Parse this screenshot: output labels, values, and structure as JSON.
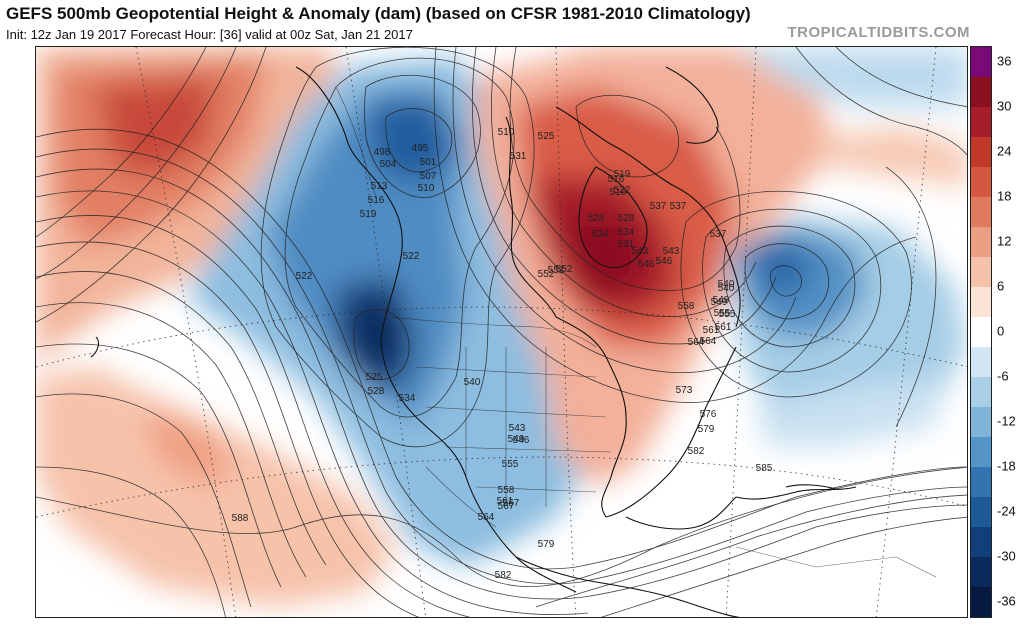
{
  "header": {
    "title": "GEFS 500mb Geopotential Height & Anomaly (dam) (based on CFSR 1981-2010 Climatology)",
    "subtitle": "Init: 12z Jan 19 2017   Forecast Hour: [36]   valid at 00z Sat, Jan 21 2017",
    "brand": "TROPICALTIDBITS.COM"
  },
  "colorbar": {
    "labels": [
      "36",
      "30",
      "24",
      "18",
      "12",
      "6",
      "0",
      "-6",
      "-12",
      "-18",
      "-24",
      "-30",
      "-36"
    ],
    "colors": [
      "#7a0a78",
      "#8a1020",
      "#a51e2a",
      "#c0392b",
      "#d4573f",
      "#e07a5f",
      "#ec9e82",
      "#f5c3ab",
      "#fbe3d6",
      "#ffffff",
      "#d2e6f3",
      "#a9cfe6",
      "#7fb3d8",
      "#5494c6",
      "#3273b0",
      "#1d5897",
      "#113f7a",
      "#0a2a5c",
      "#061a40"
    ]
  },
  "contour_labels": [
    {
      "text": "498"
    },
    {
      "text": "495"
    },
    {
      "text": "504"
    },
    {
      "text": "501"
    },
    {
      "text": "507"
    },
    {
      "text": "510"
    },
    {
      "text": "513"
    },
    {
      "text": "516"
    },
    {
      "text": "519"
    },
    {
      "text": "522"
    },
    {
      "text": "522"
    },
    {
      "text": "525"
    },
    {
      "text": "528"
    },
    {
      "text": "531"
    },
    {
      "text": "534"
    },
    {
      "text": "537"
    },
    {
      "text": "540"
    },
    {
      "text": "543"
    },
    {
      "text": "546"
    },
    {
      "text": "549"
    },
    {
      "text": "552"
    },
    {
      "text": "555"
    },
    {
      "text": "558"
    },
    {
      "text": "561"
    },
    {
      "text": "564"
    },
    {
      "text": "567"
    },
    {
      "text": "573"
    },
    {
      "text": "576"
    },
    {
      "text": "579"
    },
    {
      "text": "582"
    },
    {
      "text": "585"
    },
    {
      "text": "588"
    },
    {
      "text": "579"
    },
    {
      "text": "582"
    },
    {
      "text": "552"
    },
    {
      "text": "528"
    },
    {
      "text": "537"
    },
    {
      "text": "534"
    },
    {
      "text": "543"
    },
    {
      "text": "546"
    },
    {
      "text": "540"
    },
    {
      "text": "549"
    },
    {
      "text": "555"
    },
    {
      "text": "561"
    },
    {
      "text": "564"
    },
    {
      "text": "516"
    },
    {
      "text": "522"
    },
    {
      "text": "519"
    },
    {
      "text": "525"
    },
    {
      "text": "510"
    },
    {
      "text": "537"
    },
    {
      "text": "528"
    },
    {
      "text": "531"
    },
    {
      "text": "534"
    },
    {
      "text": "540"
    },
    {
      "text": "543"
    },
    {
      "text": "546"
    },
    {
      "text": "549"
    },
    {
      "text": "552"
    },
    {
      "text": "555"
    },
    {
      "text": "558"
    },
    {
      "text": "561"
    },
    {
      "text": "564"
    },
    {
      "text": "567"
    },
    {
      "text": "516"
    }
  ],
  "anomaly_centers": [
    {
      "sign": "positive",
      "value_dam": 24,
      "region": "North Pacific"
    },
    {
      "sign": "negative",
      "value_dam": -24,
      "region": "Gulf of Alaska"
    },
    {
      "sign": "negative",
      "value_dam": -30,
      "region": "US West Coast"
    },
    {
      "sign": "positive",
      "value_dam": 30,
      "region": "Hudson Bay / Eastern Canada"
    },
    {
      "sign": "negative",
      "value_dam": -24,
      "region": "NW Atlantic"
    },
    {
      "sign": "positive",
      "value_dam": 12,
      "region": "Subtropical Pacific"
    }
  ]
}
